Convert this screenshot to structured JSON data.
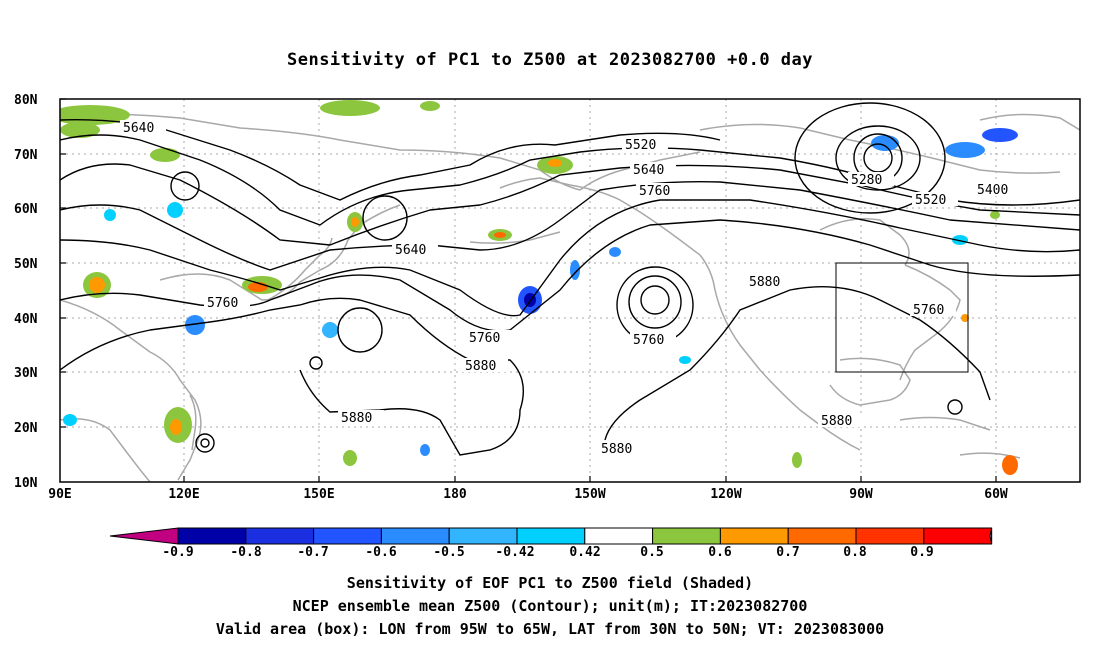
{
  "title": "Sensitivity of PC1 to Z500 at 2023082700 +0.0 day",
  "lat_labels": [
    "80N",
    "70N",
    "60N",
    "50N",
    "40N",
    "30N",
    "20N",
    "10N"
  ],
  "lon_labels": [
    "90E",
    "120E",
    "150E",
    "180",
    "150W",
    "120W",
    "90W",
    "60W"
  ],
  "contour_labels": [
    "5640",
    "5520",
    "5640",
    "5760",
    "5280",
    "5400",
    "5520",
    "5640",
    "5760",
    "5760",
    "5880",
    "5760",
    "5880",
    "5880",
    "5880",
    "5880",
    "5760"
  ],
  "colorbar": {
    "ticks": [
      "-0.9",
      "-0.8",
      "-0.7",
      "-0.6",
      "-0.5",
      "-0.42",
      "0.42",
      "0.5",
      "0.6",
      "0.7",
      "0.8",
      "0.9"
    ],
    "colors": [
      "#c00080",
      "#0000a8",
      "#1a2fe0",
      "#2255ff",
      "#2b8cff",
      "#33b4ff",
      "#00d0ff",
      "#ffffff",
      "#8cc63f",
      "#ff9900",
      "#ff6a00",
      "#ff3300",
      "#ff0000",
      "#ff99cc"
    ]
  },
  "captions": {
    "line1": "Sensitivity of EOF PC1 to Z500 field (Shaded)",
    "line2": "NCEP ensemble mean Z500 (Contour); unit(m); IT:2023082700",
    "line3": "Valid area (box): LON from 95W to 65W, LAT from 30N to 50N; VT: 2023083000"
  }
}
